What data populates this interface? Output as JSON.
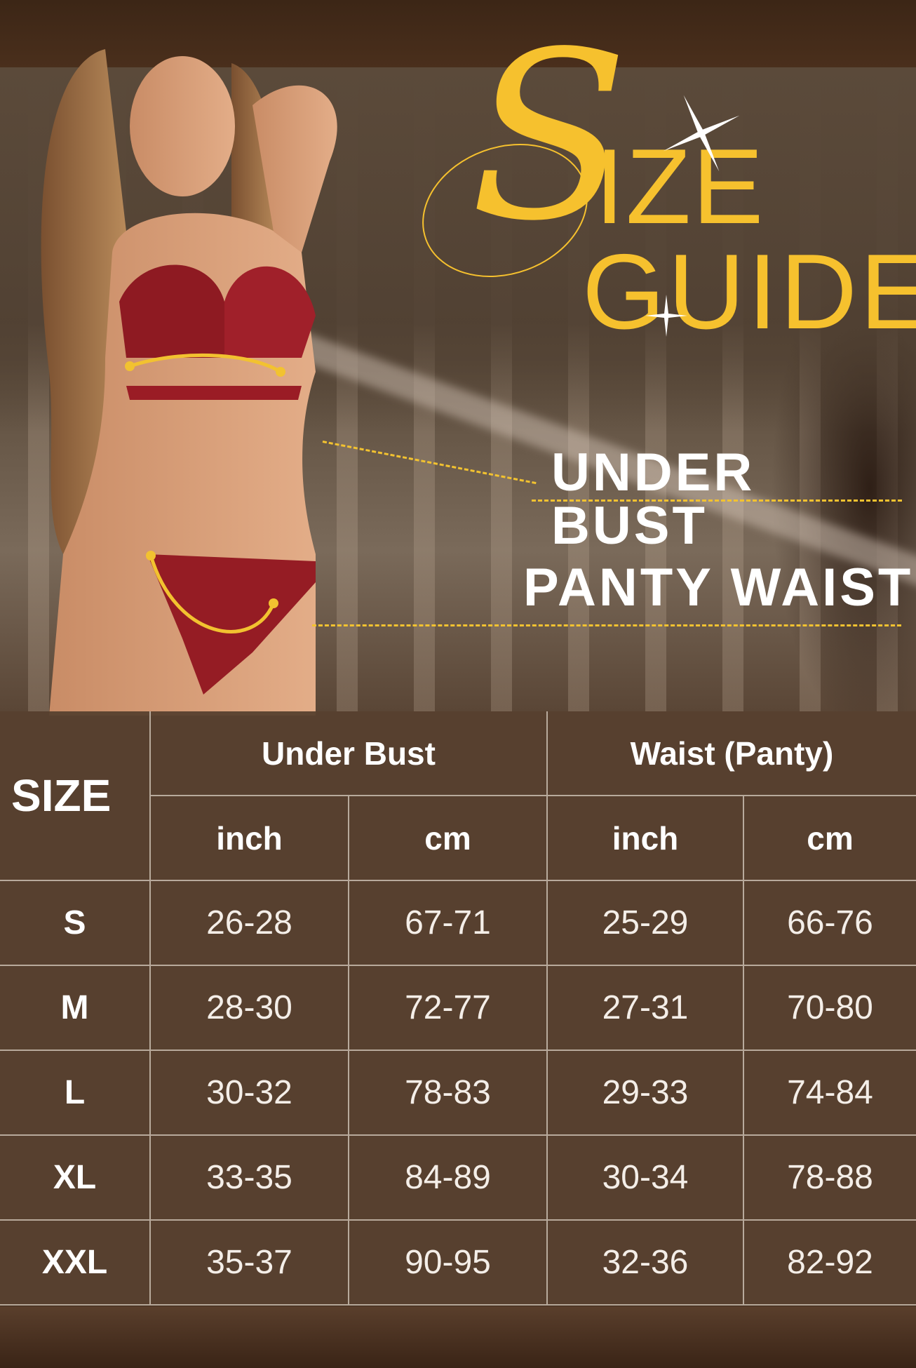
{
  "title": {
    "first_letter": "S",
    "line1_rest": "IZE",
    "line2": "GUIDE"
  },
  "callouts": {
    "under_bust": "UNDER BUST",
    "panty_waist": "PANTY WAIST"
  },
  "colors": {
    "accent": "#f6c12e",
    "table_bg": "#58422f",
    "text": "#ffffff"
  },
  "table": {
    "size_header": "SIZE",
    "groups": [
      "Under Bust",
      "Waist (Panty)"
    ],
    "units": [
      "inch",
      "cm",
      "inch",
      "cm"
    ],
    "rows": [
      {
        "size": "S",
        "values": [
          "26-28",
          "67-71",
          "25-29",
          "66-76"
        ]
      },
      {
        "size": "M",
        "values": [
          "28-30",
          "72-77",
          "27-31",
          "70-80"
        ]
      },
      {
        "size": "L",
        "values": [
          "30-32",
          "78-83",
          "29-33",
          "74-84"
        ]
      },
      {
        "size": "XL",
        "values": [
          "33-35",
          "84-89",
          "30-34",
          "78-88"
        ]
      },
      {
        "size": "XXL",
        "values": [
          "35-37",
          "90-95",
          "32-36",
          "82-92"
        ]
      }
    ]
  }
}
